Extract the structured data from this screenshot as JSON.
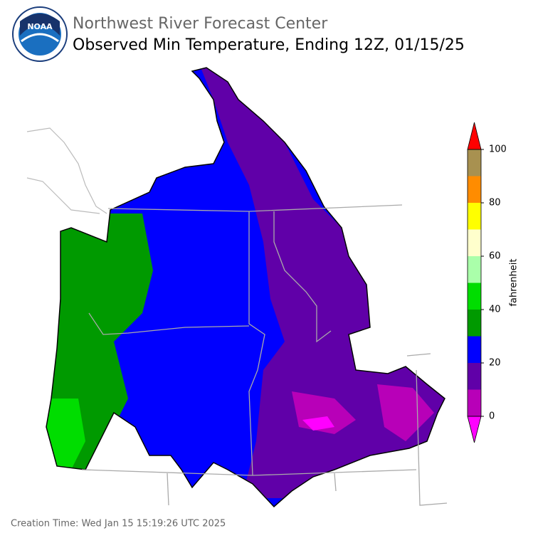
{
  "header": {
    "agency": "Northwest River Forecast Center",
    "title": "Observed Min Temperature, Ending 12Z, 01/15/25"
  },
  "logo": {
    "text": "NOAA"
  },
  "colorbar": {
    "label": "fahrenheit",
    "ticks": [
      0,
      20,
      40,
      60,
      80,
      100
    ],
    "bins": [
      0,
      10,
      20,
      30,
      40,
      50,
      60,
      70,
      80,
      90,
      100
    ],
    "colors": [
      "#b800b8",
      "#6000a8",
      "#0000ff",
      "#009a00",
      "#00dd00",
      "#aaffaa",
      "#ffffcc",
      "#ffff00",
      "#ff8c00",
      "#a89150"
    ],
    "under_color": "#ff00ff",
    "over_color": "#ff0000"
  },
  "footer": {
    "creation_time": "Creation Time: Wed Jan 15 15:19:26 UTC 2025"
  }
}
